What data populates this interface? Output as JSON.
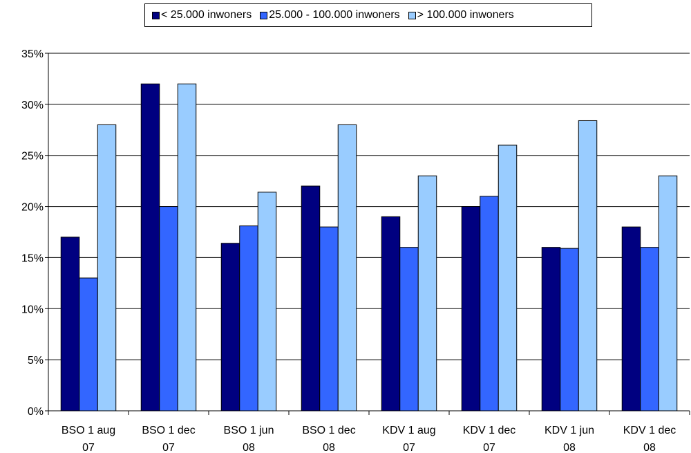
{
  "chart_data": {
    "type": "bar",
    "categories": [
      [
        "BSO 1 aug",
        "07"
      ],
      [
        "BSO 1 dec",
        "07"
      ],
      [
        "BSO 1 jun",
        "08"
      ],
      [
        "BSO 1 dec",
        "08"
      ],
      [
        "KDV 1 aug",
        "07"
      ],
      [
        "KDV 1 dec",
        "07"
      ],
      [
        "KDV 1 jun",
        "08"
      ],
      [
        "KDV 1 dec",
        "08"
      ]
    ],
    "series": [
      {
        "name": "< 25.000 inwoners",
        "color": "#000080",
        "values": [
          17,
          32,
          16.4,
          22,
          19,
          20,
          16,
          18
        ]
      },
      {
        "name": "25.000 - 100.000 inwoners",
        "color": "#3366ff",
        "values": [
          13,
          20,
          18.1,
          18,
          16,
          21,
          15.9,
          16
        ]
      },
      {
        "name": "> 100.000 inwoners",
        "color": "#99ccff",
        "values": [
          28,
          32,
          21.4,
          28,
          23,
          26,
          28.4,
          23
        ]
      }
    ],
    "ylim": [
      0,
      35
    ],
    "yticks": [
      0,
      5,
      10,
      15,
      20,
      25,
      30,
      35
    ],
    "ytick_suffix": "%",
    "grid": true,
    "legend_position": "top"
  }
}
